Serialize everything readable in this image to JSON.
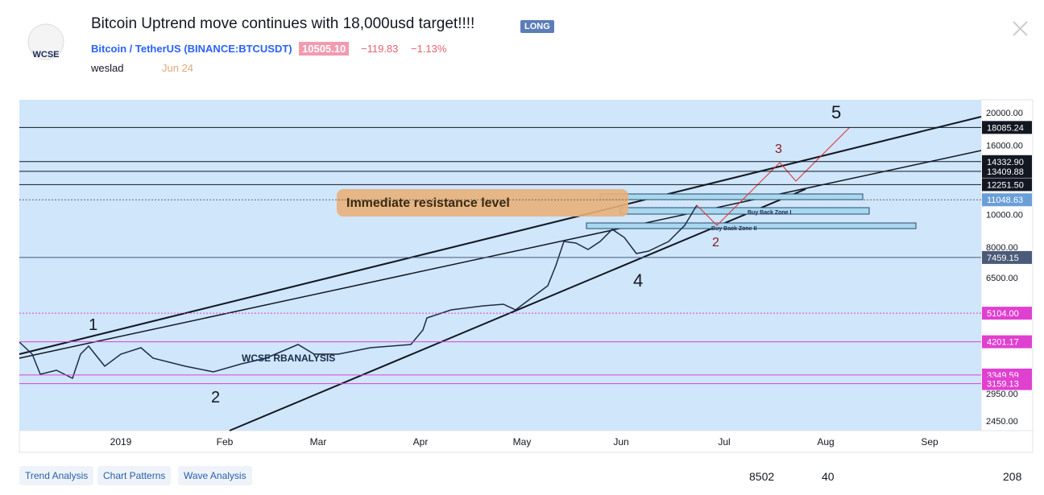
{
  "header": {
    "logo": "WCSE",
    "title": "Bitcoin Uptrend move continues with 18,000usd target!!!!",
    "badge": "LONG",
    "symbol": "Bitcoin / TetherUS (BINANCE:BTCUSDT)",
    "price": "10505.10",
    "change": "−119.83",
    "change_pct": "−1.13%",
    "author": "weslad",
    "date": "Jun 24"
  },
  "chart": {
    "price_axis": [
      "20000.00",
      "16000.00",
      "10000.00",
      "8000.00",
      "6500.00",
      "2950.00",
      "2450.00"
    ],
    "price_tags": [
      {
        "label": "18085.24",
        "color": "#131722"
      },
      {
        "label": "14332.90",
        "color": "#131722"
      },
      {
        "label": "13409.88",
        "color": "#131722"
      },
      {
        "label": "12251.50",
        "color": "#131722"
      },
      {
        "label": "11048.63",
        "color": "#6a9fd8"
      },
      {
        "label": "7459.15",
        "color": "#4a5a78"
      },
      {
        "label": "5104.00",
        "color": "#e040d0"
      },
      {
        "label": "4201.17",
        "color": "#e040d0"
      },
      {
        "label": "3349.59",
        "color": "#e040d0"
      },
      {
        "label": "3159.13",
        "color": "#e040d0"
      }
    ],
    "time_axis": [
      "2019",
      "Feb",
      "Mar",
      "Apr",
      "May",
      "Jun",
      "Jul",
      "Aug",
      "Sep"
    ],
    "annotations": [
      "Immediate resistance level",
      "Buy Back Zone I",
      "Buy Back Zone II",
      "WCSE RBANALYSIS",
      "5",
      "3",
      "2",
      "4",
      "1",
      "2"
    ]
  },
  "tags": [
    "Trend Analysis",
    "Chart Patterns",
    "Wave Analysis"
  ],
  "stats": {
    "views": "8502",
    "comments": "40",
    "likes": "208"
  }
}
